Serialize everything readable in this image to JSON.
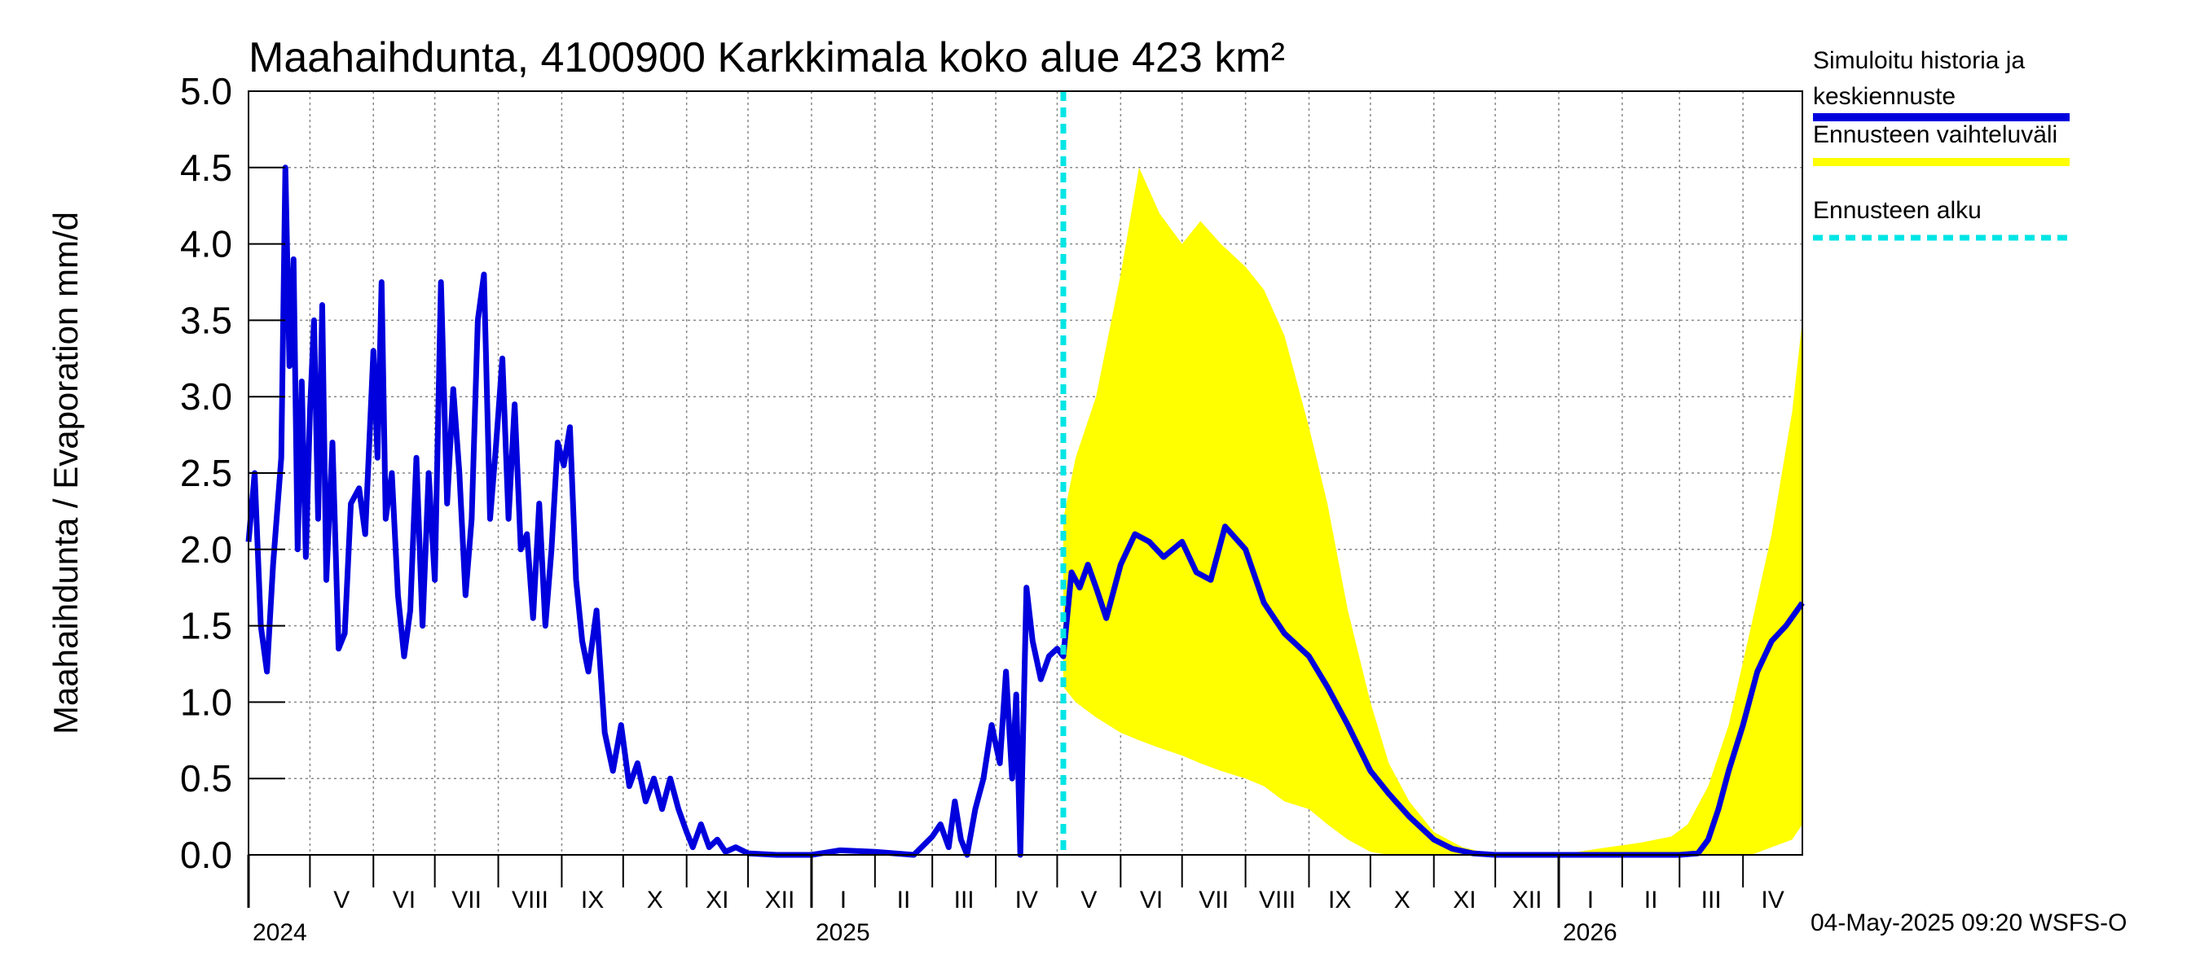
{
  "chart_data": {
    "type": "line",
    "title": "Maahaihdunta, 4100900 Karkkimala koko alue 423 km²",
    "ylabel": "Maahaihdunta / Evaporation   mm/d",
    "ylim": [
      0,
      5
    ],
    "yticks": [
      "0.0",
      "0.5",
      "1.0",
      "1.5",
      "2.0",
      "2.5",
      "3.0",
      "3.5",
      "4.0",
      "4.5",
      "5.0"
    ],
    "x_range": [
      "2024-04-01",
      "2026-04-30"
    ],
    "grid": true,
    "legend_position": "right",
    "months": [
      {
        "label": "V",
        "date": "2024-05-01"
      },
      {
        "label": "VI",
        "date": "2024-06-01"
      },
      {
        "label": "VII",
        "date": "2024-07-01"
      },
      {
        "label": "VIII",
        "date": "2024-08-01"
      },
      {
        "label": "IX",
        "date": "2024-09-01"
      },
      {
        "label": "X",
        "date": "2024-10-01"
      },
      {
        "label": "XI",
        "date": "2024-11-01"
      },
      {
        "label": "XII",
        "date": "2024-12-01"
      },
      {
        "label": "I",
        "date": "2025-01-01"
      },
      {
        "label": "II",
        "date": "2025-02-01"
      },
      {
        "label": "III",
        "date": "2025-03-01"
      },
      {
        "label": "IV",
        "date": "2025-04-01"
      },
      {
        "label": "V",
        "date": "2025-05-01"
      },
      {
        "label": "VI",
        "date": "2025-06-01"
      },
      {
        "label": "VII",
        "date": "2025-07-01"
      },
      {
        "label": "VIII",
        "date": "2025-08-01"
      },
      {
        "label": "IX",
        "date": "2025-09-01"
      },
      {
        "label": "X",
        "date": "2025-10-01"
      },
      {
        "label": "XI",
        "date": "2025-11-01"
      },
      {
        "label": "XII",
        "date": "2025-12-01"
      },
      {
        "label": "I",
        "date": "2026-01-01"
      },
      {
        "label": "II",
        "date": "2026-02-01"
      },
      {
        "label": "III",
        "date": "2026-03-01"
      },
      {
        "label": "IV",
        "date": "2026-04-01"
      }
    ],
    "years": [
      {
        "label": "2024",
        "date": "2024-04-01"
      },
      {
        "label": "2025",
        "date": "2025-01-01"
      },
      {
        "label": "2026",
        "date": "2026-01-01"
      }
    ],
    "forecast_start": "2025-05-04",
    "series": [
      {
        "name": "Simuloitu historia ja keskiennuste",
        "color": "#0000dd",
        "points": [
          [
            "2024-04-01",
            2.05
          ],
          [
            "2024-04-04",
            2.5
          ],
          [
            "2024-04-07",
            1.5
          ],
          [
            "2024-04-10",
            1.2
          ],
          [
            "2024-04-13",
            1.9
          ],
          [
            "2024-04-17",
            2.6
          ],
          [
            "2024-04-19",
            4.5
          ],
          [
            "2024-04-21",
            3.2
          ],
          [
            "2024-04-23",
            3.9
          ],
          [
            "2024-04-25",
            2.0
          ],
          [
            "2024-04-27",
            3.1
          ],
          [
            "2024-04-29",
            1.95
          ],
          [
            "2024-05-01",
            2.9
          ],
          [
            "2024-05-03",
            3.5
          ],
          [
            "2024-05-05",
            2.2
          ],
          [
            "2024-05-07",
            3.6
          ],
          [
            "2024-05-09",
            1.8
          ],
          [
            "2024-05-12",
            2.7
          ],
          [
            "2024-05-15",
            1.35
          ],
          [
            "2024-05-18",
            1.45
          ],
          [
            "2024-05-21",
            2.3
          ],
          [
            "2024-05-25",
            2.4
          ],
          [
            "2024-05-28",
            2.1
          ],
          [
            "2024-06-01",
            3.3
          ],
          [
            "2024-06-03",
            2.6
          ],
          [
            "2024-06-05",
            3.75
          ],
          [
            "2024-06-07",
            2.2
          ],
          [
            "2024-06-10",
            2.5
          ],
          [
            "2024-06-13",
            1.7
          ],
          [
            "2024-06-16",
            1.3
          ],
          [
            "2024-06-19",
            1.6
          ],
          [
            "2024-06-22",
            2.6
          ],
          [
            "2024-06-25",
            1.5
          ],
          [
            "2024-06-28",
            2.5
          ],
          [
            "2024-07-01",
            1.8
          ],
          [
            "2024-07-04",
            3.75
          ],
          [
            "2024-07-07",
            2.3
          ],
          [
            "2024-07-10",
            3.05
          ],
          [
            "2024-07-13",
            2.5
          ],
          [
            "2024-07-16",
            1.7
          ],
          [
            "2024-07-19",
            2.2
          ],
          [
            "2024-07-22",
            3.5
          ],
          [
            "2024-07-25",
            3.8
          ],
          [
            "2024-07-28",
            2.2
          ],
          [
            "2024-07-31",
            2.7
          ],
          [
            "2024-08-03",
            3.25
          ],
          [
            "2024-08-06",
            2.2
          ],
          [
            "2024-08-09",
            2.95
          ],
          [
            "2024-08-12",
            2.0
          ],
          [
            "2024-08-15",
            2.1
          ],
          [
            "2024-08-18",
            1.55
          ],
          [
            "2024-08-21",
            2.3
          ],
          [
            "2024-08-24",
            1.5
          ],
          [
            "2024-08-27",
            2.0
          ],
          [
            "2024-08-30",
            2.7
          ],
          [
            "2024-09-02",
            2.55
          ],
          [
            "2024-09-05",
            2.8
          ],
          [
            "2024-09-08",
            1.8
          ],
          [
            "2024-09-11",
            1.4
          ],
          [
            "2024-09-14",
            1.2
          ],
          [
            "2024-09-18",
            1.6
          ],
          [
            "2024-09-22",
            0.8
          ],
          [
            "2024-09-26",
            0.55
          ],
          [
            "2024-09-30",
            0.85
          ],
          [
            "2024-10-04",
            0.45
          ],
          [
            "2024-10-08",
            0.6
          ],
          [
            "2024-10-12",
            0.35
          ],
          [
            "2024-10-16",
            0.5
          ],
          [
            "2024-10-20",
            0.3
          ],
          [
            "2024-10-24",
            0.5
          ],
          [
            "2024-10-28",
            0.3
          ],
          [
            "2024-11-01",
            0.15
          ],
          [
            "2024-11-04",
            0.05
          ],
          [
            "2024-11-08",
            0.2
          ],
          [
            "2024-11-12",
            0.05
          ],
          [
            "2024-11-16",
            0.1
          ],
          [
            "2024-11-20",
            0.02
          ],
          [
            "2024-11-25",
            0.05
          ],
          [
            "2024-12-01",
            0.01
          ],
          [
            "2024-12-15",
            0.0
          ],
          [
            "2025-01-01",
            0.0
          ],
          [
            "2025-01-15",
            0.03
          ],
          [
            "2025-02-01",
            0.02
          ],
          [
            "2025-02-20",
            0.0
          ],
          [
            "2025-03-01",
            0.12
          ],
          [
            "2025-03-05",
            0.2
          ],
          [
            "2025-03-09",
            0.05
          ],
          [
            "2025-03-12",
            0.35
          ],
          [
            "2025-03-15",
            0.1
          ],
          [
            "2025-03-18",
            0.0
          ],
          [
            "2025-03-22",
            0.3
          ],
          [
            "2025-03-26",
            0.5
          ],
          [
            "2025-03-30",
            0.85
          ],
          [
            "2025-04-03",
            0.6
          ],
          [
            "2025-04-06",
            1.2
          ],
          [
            "2025-04-09",
            0.5
          ],
          [
            "2025-04-11",
            1.05
          ],
          [
            "2025-04-13",
            0.0
          ],
          [
            "2025-04-16",
            1.75
          ],
          [
            "2025-04-19",
            1.4
          ],
          [
            "2025-04-23",
            1.15
          ],
          [
            "2025-04-27",
            1.3
          ],
          [
            "2025-05-01",
            1.35
          ],
          [
            "2025-05-04",
            1.3
          ],
          [
            "2025-05-08",
            1.85
          ],
          [
            "2025-05-12",
            1.75
          ],
          [
            "2025-05-16",
            1.9
          ],
          [
            "2025-05-20",
            1.75
          ],
          [
            "2025-05-25",
            1.55
          ],
          [
            "2025-06-01",
            1.9
          ],
          [
            "2025-06-08",
            2.1
          ],
          [
            "2025-06-15",
            2.05
          ],
          [
            "2025-06-22",
            1.95
          ],
          [
            "2025-07-01",
            2.05
          ],
          [
            "2025-07-08",
            1.85
          ],
          [
            "2025-07-15",
            1.8
          ],
          [
            "2025-07-22",
            2.15
          ],
          [
            "2025-08-01",
            2.0
          ],
          [
            "2025-08-10",
            1.65
          ],
          [
            "2025-08-20",
            1.45
          ],
          [
            "2025-09-01",
            1.3
          ],
          [
            "2025-09-10",
            1.1
          ],
          [
            "2025-09-20",
            0.85
          ],
          [
            "2025-10-01",
            0.55
          ],
          [
            "2025-10-10",
            0.4
          ],
          [
            "2025-10-20",
            0.25
          ],
          [
            "2025-11-01",
            0.1
          ],
          [
            "2025-11-10",
            0.04
          ],
          [
            "2025-11-20",
            0.01
          ],
          [
            "2025-12-01",
            0.0
          ],
          [
            "2026-01-01",
            0.0
          ],
          [
            "2026-02-01",
            0.0
          ],
          [
            "2026-03-01",
            0.0
          ],
          [
            "2026-03-10",
            0.01
          ],
          [
            "2026-03-15",
            0.1
          ],
          [
            "2026-03-20",
            0.3
          ],
          [
            "2026-03-25",
            0.55
          ],
          [
            "2026-04-01",
            0.85
          ],
          [
            "2026-04-08",
            1.2
          ],
          [
            "2026-04-15",
            1.4
          ],
          [
            "2026-04-22",
            1.5
          ],
          [
            "2026-04-30",
            1.65
          ]
        ]
      },
      {
        "name": "Ennusteen vaihteluväli",
        "color": "#ffff00",
        "band": [
          [
            "2025-05-04",
            1.1,
            2.2
          ],
          [
            "2025-05-10",
            1.0,
            2.6
          ],
          [
            "2025-05-20",
            0.9,
            3.0
          ],
          [
            "2025-06-01",
            0.8,
            3.8
          ],
          [
            "2025-06-10",
            0.75,
            4.5
          ],
          [
            "2025-06-20",
            0.7,
            4.2
          ],
          [
            "2025-07-01",
            0.65,
            4.0
          ],
          [
            "2025-07-10",
            0.6,
            4.15
          ],
          [
            "2025-07-20",
            0.55,
            4.0
          ],
          [
            "2025-08-01",
            0.5,
            3.85
          ],
          [
            "2025-08-10",
            0.45,
            3.7
          ],
          [
            "2025-08-20",
            0.35,
            3.4
          ],
          [
            "2025-09-01",
            0.3,
            2.8
          ],
          [
            "2025-09-10",
            0.2,
            2.3
          ],
          [
            "2025-09-20",
            0.1,
            1.6
          ],
          [
            "2025-10-01",
            0.02,
            1.0
          ],
          [
            "2025-10-10",
            0.0,
            0.6
          ],
          [
            "2025-10-20",
            0.0,
            0.35
          ],
          [
            "2025-11-01",
            0.0,
            0.15
          ],
          [
            "2025-11-15",
            0.0,
            0.05
          ],
          [
            "2025-12-01",
            0.0,
            0.0
          ],
          [
            "2026-01-01",
            0.0,
            0.0
          ],
          [
            "2026-01-20",
            0.0,
            0.04
          ],
          [
            "2026-02-10",
            0.0,
            0.08
          ],
          [
            "2026-02-25",
            0.0,
            0.12
          ],
          [
            "2026-03-05",
            0.0,
            0.2
          ],
          [
            "2026-03-15",
            0.0,
            0.45
          ],
          [
            "2026-03-25",
            0.0,
            0.85
          ],
          [
            "2026-04-05",
            0.0,
            1.5
          ],
          [
            "2026-04-15",
            0.05,
            2.1
          ],
          [
            "2026-04-25",
            0.1,
            2.9
          ],
          [
            "2026-04-30",
            0.2,
            3.5
          ]
        ]
      }
    ]
  },
  "legend": [
    {
      "line1": "Simuloitu historia ja",
      "line2": "keskiennuste",
      "color": "#0000dd",
      "style": "solid"
    },
    {
      "line1": "Ennusteen vaihteluväli",
      "line2": "",
      "color": "#ffff00",
      "style": "solid"
    },
    {
      "line1": "Ennusteen alku",
      "line2": "",
      "color": "#00e5e5",
      "style": "dashed"
    }
  ],
  "footer": "04-May-2025 09:20 WSFS-O"
}
